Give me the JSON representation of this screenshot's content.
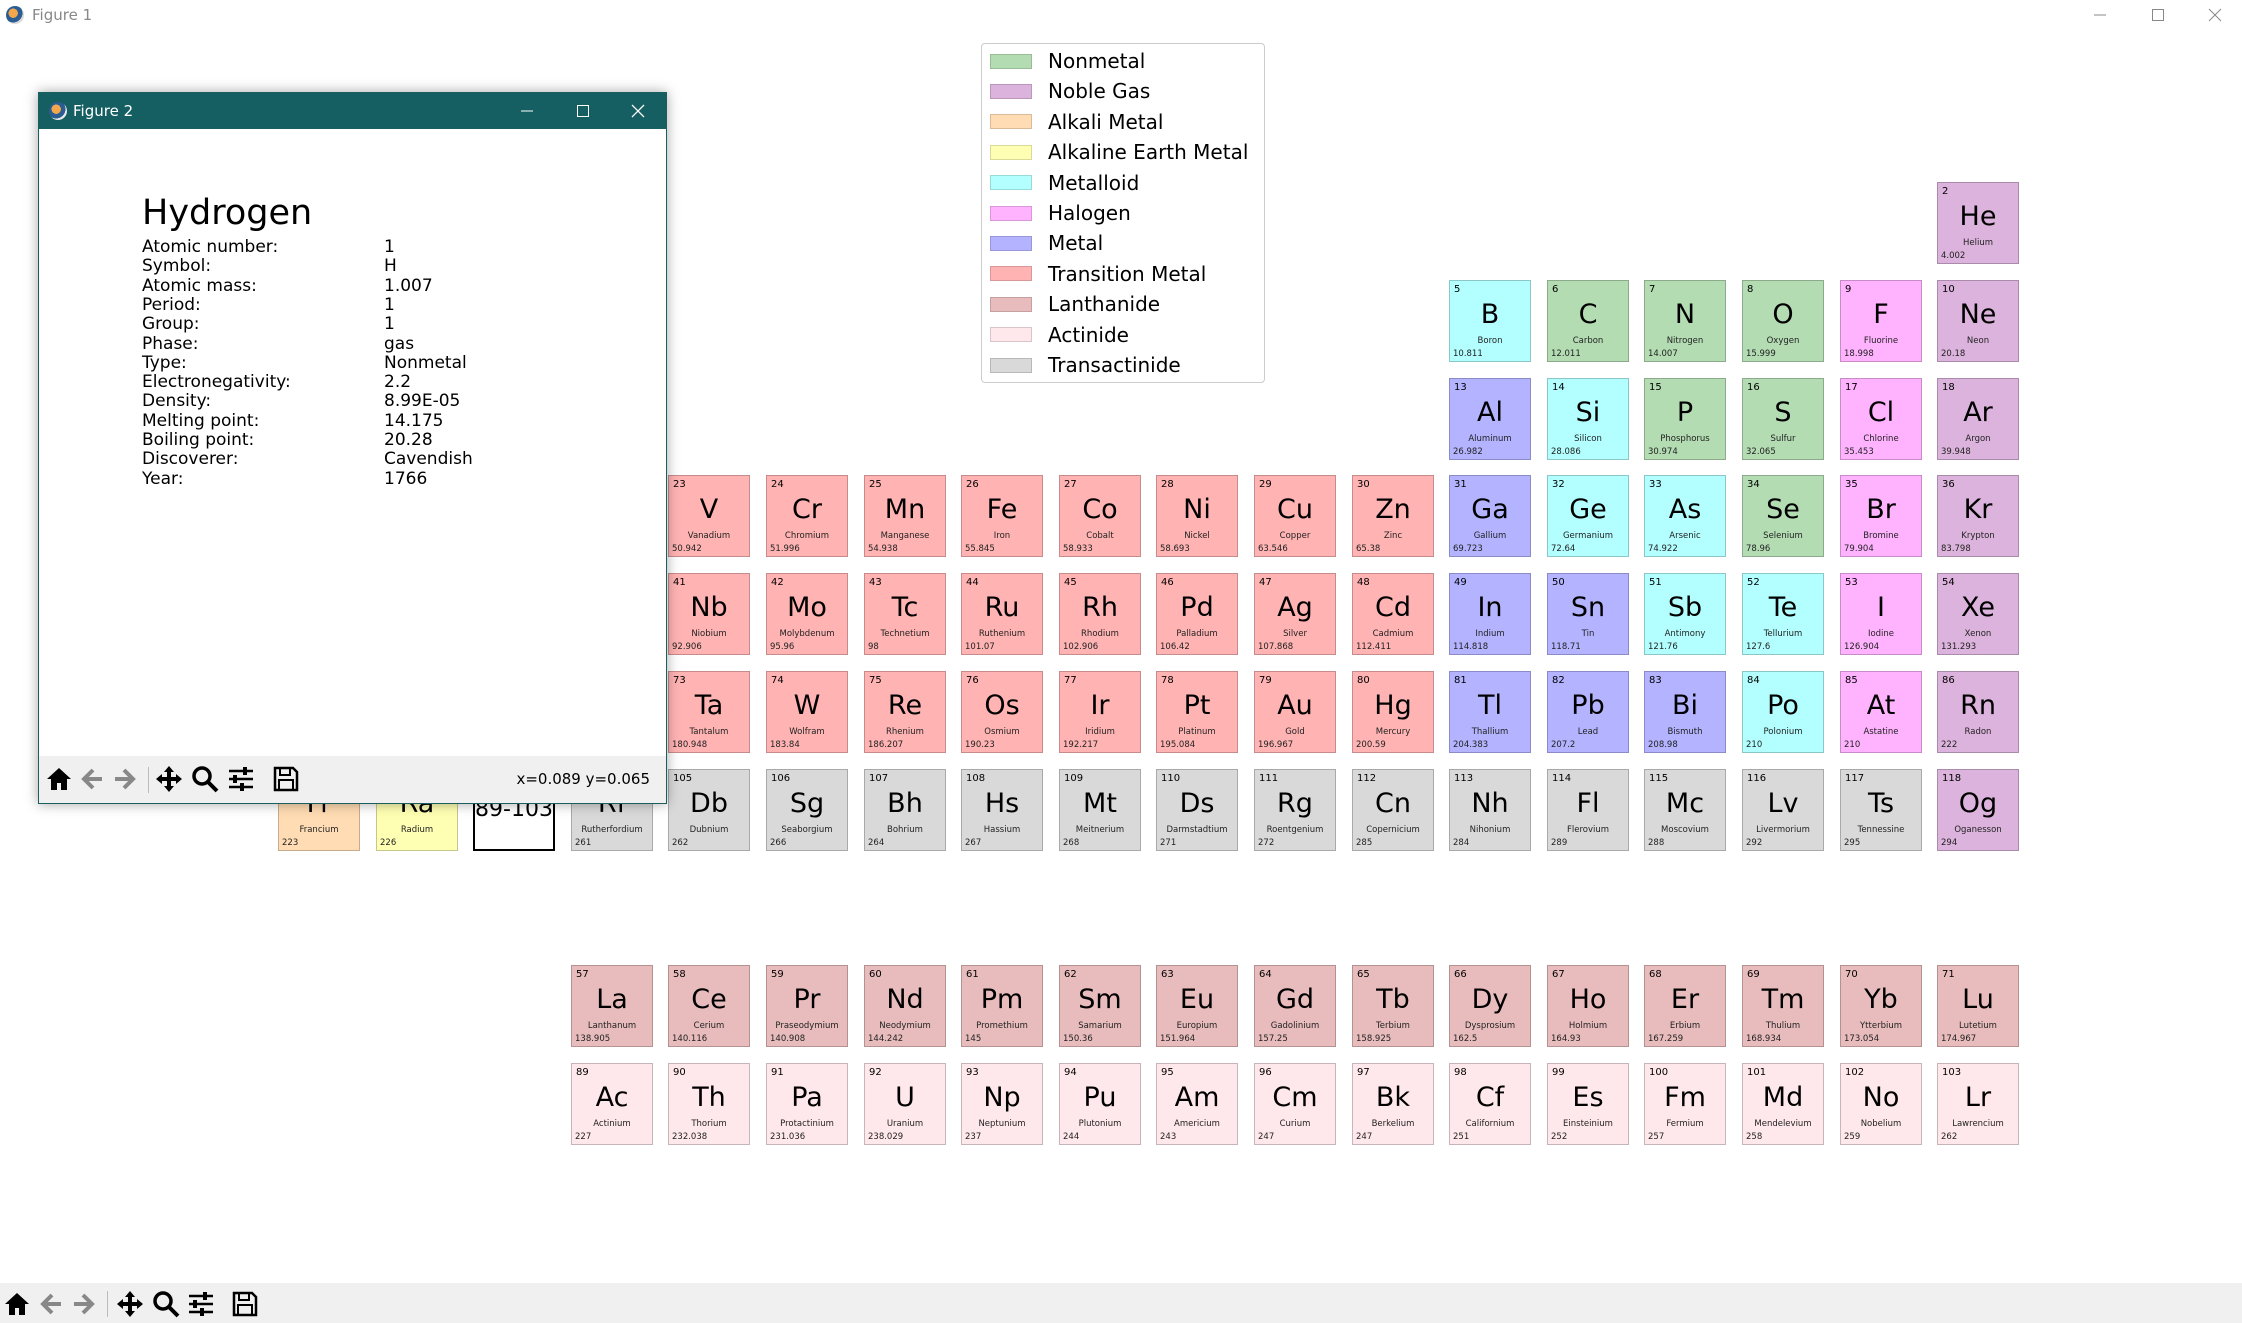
{
  "window": {
    "title": "Figure 1",
    "controls": [
      "minimize",
      "maximize",
      "close"
    ],
    "toolbar": [
      "home-icon",
      "back-arrow-icon",
      "forward-arrow-icon",
      "pan-icon",
      "zoom-icon",
      "configure-subplots-icon",
      "save-icon"
    ]
  },
  "colors": {
    "Nonmetal": "#b3dcb3",
    "Noble Gas": "#dcb3dc",
    "Alkali Metal": "#ffdcb3",
    "Alkaline Earth Metal": "#ffffb3",
    "Metalloid": "#b3ffff",
    "Halogen": "#ffb3ff",
    "Metal": "#b3b3ff",
    "Transition Metal": "#ffb3b3",
    "Lanthanide": "#e8bcbc",
    "Actinide": "#ffe8ec",
    "Transactinide": "#d9d9d9"
  },
  "legend": [
    "Nonmetal",
    "Noble Gas",
    "Alkali Metal",
    "Alkaline Earth Metal",
    "Metalloid",
    "Halogen",
    "Metal",
    "Transition Metal",
    "Lanthanide",
    "Actinide",
    "Transactinide"
  ],
  "placeholder": {
    "label": "89-103"
  },
  "elements": [
    {
      "n": "2",
      "s": "He",
      "name": "Helium",
      "mass": "4.002",
      "type": "Noble Gas",
      "col": 18,
      "row": 1
    },
    {
      "n": "5",
      "s": "B",
      "name": "Boron",
      "mass": "10.811",
      "type": "Metalloid",
      "col": 13,
      "row": 2
    },
    {
      "n": "6",
      "s": "C",
      "name": "Carbon",
      "mass": "12.011",
      "type": "Nonmetal",
      "col": 14,
      "row": 2
    },
    {
      "n": "7",
      "s": "N",
      "name": "Nitrogen",
      "mass": "14.007",
      "type": "Nonmetal",
      "col": 15,
      "row": 2
    },
    {
      "n": "8",
      "s": "O",
      "name": "Oxygen",
      "mass": "15.999",
      "type": "Nonmetal",
      "col": 16,
      "row": 2
    },
    {
      "n": "9",
      "s": "F",
      "name": "Fluorine",
      "mass": "18.998",
      "type": "Halogen",
      "col": 17,
      "row": 2
    },
    {
      "n": "10",
      "s": "Ne",
      "name": "Neon",
      "mass": "20.18",
      "type": "Noble Gas",
      "col": 18,
      "row": 2
    },
    {
      "n": "13",
      "s": "Al",
      "name": "Aluminum",
      "mass": "26.982",
      "type": "Metal",
      "col": 13,
      "row": 3
    },
    {
      "n": "14",
      "s": "Si",
      "name": "Silicon",
      "mass": "28.086",
      "type": "Metalloid",
      "col": 14,
      "row": 3
    },
    {
      "n": "15",
      "s": "P",
      "name": "Phosphorus",
      "mass": "30.974",
      "type": "Nonmetal",
      "col": 15,
      "row": 3
    },
    {
      "n": "16",
      "s": "S",
      "name": "Sulfur",
      "mass": "32.065",
      "type": "Nonmetal",
      "col": 16,
      "row": 3
    },
    {
      "n": "17",
      "s": "Cl",
      "name": "Chlorine",
      "mass": "35.453",
      "type": "Halogen",
      "col": 17,
      "row": 3
    },
    {
      "n": "18",
      "s": "Ar",
      "name": "Argon",
      "mass": "39.948",
      "type": "Noble Gas",
      "col": 18,
      "row": 3
    },
    {
      "n": "23",
      "s": "V",
      "name": "Vanadium",
      "mass": "50.942",
      "type": "Transition Metal",
      "col": 5,
      "row": 4
    },
    {
      "n": "24",
      "s": "Cr",
      "name": "Chromium",
      "mass": "51.996",
      "type": "Transition Metal",
      "col": 6,
      "row": 4
    },
    {
      "n": "25",
      "s": "Mn",
      "name": "Manganese",
      "mass": "54.938",
      "type": "Transition Metal",
      "col": 7,
      "row": 4
    },
    {
      "n": "26",
      "s": "Fe",
      "name": "Iron",
      "mass": "55.845",
      "type": "Transition Metal",
      "col": 8,
      "row": 4
    },
    {
      "n": "27",
      "s": "Co",
      "name": "Cobalt",
      "mass": "58.933",
      "type": "Transition Metal",
      "col": 9,
      "row": 4
    },
    {
      "n": "28",
      "s": "Ni",
      "name": "Nickel",
      "mass": "58.693",
      "type": "Transition Metal",
      "col": 10,
      "row": 4
    },
    {
      "n": "29",
      "s": "Cu",
      "name": "Copper",
      "mass": "63.546",
      "type": "Transition Metal",
      "col": 11,
      "row": 4
    },
    {
      "n": "30",
      "s": "Zn",
      "name": "Zinc",
      "mass": "65.38",
      "type": "Transition Metal",
      "col": 12,
      "row": 4
    },
    {
      "n": "31",
      "s": "Ga",
      "name": "Gallium",
      "mass": "69.723",
      "type": "Metal",
      "col": 13,
      "row": 4
    },
    {
      "n": "32",
      "s": "Ge",
      "name": "Germanium",
      "mass": "72.64",
      "type": "Metalloid",
      "col": 14,
      "row": 4
    },
    {
      "n": "33",
      "s": "As",
      "name": "Arsenic",
      "mass": "74.922",
      "type": "Metalloid",
      "col": 15,
      "row": 4
    },
    {
      "n": "34",
      "s": "Se",
      "name": "Selenium",
      "mass": "78.96",
      "type": "Nonmetal",
      "col": 16,
      "row": 4
    },
    {
      "n": "35",
      "s": "Br",
      "name": "Bromine",
      "mass": "79.904",
      "type": "Halogen",
      "col": 17,
      "row": 4
    },
    {
      "n": "36",
      "s": "Kr",
      "name": "Krypton",
      "mass": "83.798",
      "type": "Noble Gas",
      "col": 18,
      "row": 4
    },
    {
      "n": "41",
      "s": "Nb",
      "name": "Niobium",
      "mass": "92.906",
      "type": "Transition Metal",
      "col": 5,
      "row": 5
    },
    {
      "n": "42",
      "s": "Mo",
      "name": "Molybdenum",
      "mass": "95.96",
      "type": "Transition Metal",
      "col": 6,
      "row": 5
    },
    {
      "n": "43",
      "s": "Tc",
      "name": "Technetium",
      "mass": "98",
      "type": "Transition Metal",
      "col": 7,
      "row": 5
    },
    {
      "n": "44",
      "s": "Ru",
      "name": "Ruthenium",
      "mass": "101.07",
      "type": "Transition Metal",
      "col": 8,
      "row": 5
    },
    {
      "n": "45",
      "s": "Rh",
      "name": "Rhodium",
      "mass": "102.906",
      "type": "Transition Metal",
      "col": 9,
      "row": 5
    },
    {
      "n": "46",
      "s": "Pd",
      "name": "Palladium",
      "mass": "106.42",
      "type": "Transition Metal",
      "col": 10,
      "row": 5
    },
    {
      "n": "47",
      "s": "Ag",
      "name": "Silver",
      "mass": "107.868",
      "type": "Transition Metal",
      "col": 11,
      "row": 5
    },
    {
      "n": "48",
      "s": "Cd",
      "name": "Cadmium",
      "mass": "112.411",
      "type": "Transition Metal",
      "col": 12,
      "row": 5
    },
    {
      "n": "49",
      "s": "In",
      "name": "Indium",
      "mass": "114.818",
      "type": "Metal",
      "col": 13,
      "row": 5
    },
    {
      "n": "50",
      "s": "Sn",
      "name": "Tin",
      "mass": "118.71",
      "type": "Metal",
      "col": 14,
      "row": 5
    },
    {
      "n": "51",
      "s": "Sb",
      "name": "Antimony",
      "mass": "121.76",
      "type": "Metalloid",
      "col": 15,
      "row": 5
    },
    {
      "n": "52",
      "s": "Te",
      "name": "Tellurium",
      "mass": "127.6",
      "type": "Metalloid",
      "col": 16,
      "row": 5
    },
    {
      "n": "53",
      "s": "I",
      "name": "Iodine",
      "mass": "126.904",
      "type": "Halogen",
      "col": 17,
      "row": 5
    },
    {
      "n": "54",
      "s": "Xe",
      "name": "Xenon",
      "mass": "131.293",
      "type": "Noble Gas",
      "col": 18,
      "row": 5
    },
    {
      "n": "73",
      "s": "Ta",
      "name": "Tantalum",
      "mass": "180.948",
      "type": "Transition Metal",
      "col": 5,
      "row": 6
    },
    {
      "n": "74",
      "s": "W",
      "name": "Wolfram",
      "mass": "183.84",
      "type": "Transition Metal",
      "col": 6,
      "row": 6
    },
    {
      "n": "75",
      "s": "Re",
      "name": "Rhenium",
      "mass": "186.207",
      "type": "Transition Metal",
      "col": 7,
      "row": 6
    },
    {
      "n": "76",
      "s": "Os",
      "name": "Osmium",
      "mass": "190.23",
      "type": "Transition Metal",
      "col": 8,
      "row": 6
    },
    {
      "n": "77",
      "s": "Ir",
      "name": "Iridium",
      "mass": "192.217",
      "type": "Transition Metal",
      "col": 9,
      "row": 6
    },
    {
      "n": "78",
      "s": "Pt",
      "name": "Platinum",
      "mass": "195.084",
      "type": "Transition Metal",
      "col": 10,
      "row": 6
    },
    {
      "n": "79",
      "s": "Au",
      "name": "Gold",
      "mass": "196.967",
      "type": "Transition Metal",
      "col": 11,
      "row": 6
    },
    {
      "n": "80",
      "s": "Hg",
      "name": "Mercury",
      "mass": "200.59",
      "type": "Transition Metal",
      "col": 12,
      "row": 6
    },
    {
      "n": "81",
      "s": "Tl",
      "name": "Thallium",
      "mass": "204.383",
      "type": "Metal",
      "col": 13,
      "row": 6
    },
    {
      "n": "82",
      "s": "Pb",
      "name": "Lead",
      "mass": "207.2",
      "type": "Metal",
      "col": 14,
      "row": 6
    },
    {
      "n": "83",
      "s": "Bi",
      "name": "Bismuth",
      "mass": "208.98",
      "type": "Metal",
      "col": 15,
      "row": 6
    },
    {
      "n": "84",
      "s": "Po",
      "name": "Polonium",
      "mass": "210",
      "type": "Metalloid",
      "col": 16,
      "row": 6
    },
    {
      "n": "85",
      "s": "At",
      "name": "Astatine",
      "mass": "210",
      "type": "Halogen",
      "col": 17,
      "row": 6
    },
    {
      "n": "86",
      "s": "Rn",
      "name": "Radon",
      "mass": "222",
      "type": "Noble Gas",
      "col": 18,
      "row": 6
    },
    {
      "n": "",
      "s": "Fr",
      "name": "Francium",
      "mass": "223",
      "type": "Alkali Metal",
      "col": 1,
      "row": 7
    },
    {
      "n": "",
      "s": "Ra",
      "name": "Radium",
      "mass": "226",
      "type": "Alkaline Earth Metal",
      "col": 2,
      "row": 7
    },
    {
      "n": "",
      "s": "Rf",
      "name": "Rutherfordium",
      "mass": "261",
      "type": "Transactinide",
      "col": 4,
      "row": 7
    },
    {
      "n": "105",
      "s": "Db",
      "name": "Dubnium",
      "mass": "262",
      "type": "Transactinide",
      "col": 5,
      "row": 7
    },
    {
      "n": "106",
      "s": "Sg",
      "name": "Seaborgium",
      "mass": "266",
      "type": "Transactinide",
      "col": 6,
      "row": 7
    },
    {
      "n": "107",
      "s": "Bh",
      "name": "Bohrium",
      "mass": "264",
      "type": "Transactinide",
      "col": 7,
      "row": 7
    },
    {
      "n": "108",
      "s": "Hs",
      "name": "Hassium",
      "mass": "267",
      "type": "Transactinide",
      "col": 8,
      "row": 7
    },
    {
      "n": "109",
      "s": "Mt",
      "name": "Meitnerium",
      "mass": "268",
      "type": "Transactinide",
      "col": 9,
      "row": 7
    },
    {
      "n": "110",
      "s": "Ds",
      "name": "Darmstadtium",
      "mass": "271",
      "type": "Transactinide",
      "col": 10,
      "row": 7
    },
    {
      "n": "111",
      "s": "Rg",
      "name": "Roentgenium",
      "mass": "272",
      "type": "Transactinide",
      "col": 11,
      "row": 7
    },
    {
      "n": "112",
      "s": "Cn",
      "name": "Copernicium",
      "mass": "285",
      "type": "Transactinide",
      "col": 12,
      "row": 7
    },
    {
      "n": "113",
      "s": "Nh",
      "name": "Nihonium",
      "mass": "284",
      "type": "Transactinide",
      "col": 13,
      "row": 7
    },
    {
      "n": "114",
      "s": "Fl",
      "name": "Flerovium",
      "mass": "289",
      "type": "Transactinide",
      "col": 14,
      "row": 7
    },
    {
      "n": "115",
      "s": "Mc",
      "name": "Moscovium",
      "mass": "288",
      "type": "Transactinide",
      "col": 15,
      "row": 7
    },
    {
      "n": "116",
      "s": "Lv",
      "name": "Livermorium",
      "mass": "292",
      "type": "Transactinide",
      "col": 16,
      "row": 7
    },
    {
      "n": "117",
      "s": "Ts",
      "name": "Tennessine",
      "mass": "295",
      "type": "Transactinide",
      "col": 17,
      "row": 7
    },
    {
      "n": "118",
      "s": "Og",
      "name": "Oganesson",
      "mass": "294",
      "type": "Noble Gas",
      "col": 18,
      "row": 7
    },
    {
      "n": "57",
      "s": "La",
      "name": "Lanthanum",
      "mass": "138.905",
      "type": "Lanthanide",
      "col": 4,
      "row": 9
    },
    {
      "n": "58",
      "s": "Ce",
      "name": "Cerium",
      "mass": "140.116",
      "type": "Lanthanide",
      "col": 5,
      "row": 9
    },
    {
      "n": "59",
      "s": "Pr",
      "name": "Praseodymium",
      "mass": "140.908",
      "type": "Lanthanide",
      "col": 6,
      "row": 9
    },
    {
      "n": "60",
      "s": "Nd",
      "name": "Neodymium",
      "mass": "144.242",
      "type": "Lanthanide",
      "col": 7,
      "row": 9
    },
    {
      "n": "61",
      "s": "Pm",
      "name": "Promethium",
      "mass": "145",
      "type": "Lanthanide",
      "col": 8,
      "row": 9
    },
    {
      "n": "62",
      "s": "Sm",
      "name": "Samarium",
      "mass": "150.36",
      "type": "Lanthanide",
      "col": 9,
      "row": 9
    },
    {
      "n": "63",
      "s": "Eu",
      "name": "Europium",
      "mass": "151.964",
      "type": "Lanthanide",
      "col": 10,
      "row": 9
    },
    {
      "n": "64",
      "s": "Gd",
      "name": "Gadolinium",
      "mass": "157.25",
      "type": "Lanthanide",
      "col": 11,
      "row": 9
    },
    {
      "n": "65",
      "s": "Tb",
      "name": "Terbium",
      "mass": "158.925",
      "type": "Lanthanide",
      "col": 12,
      "row": 9
    },
    {
      "n": "66",
      "s": "Dy",
      "name": "Dysprosium",
      "mass": "162.5",
      "type": "Lanthanide",
      "col": 13,
      "row": 9
    },
    {
      "n": "67",
      "s": "Ho",
      "name": "Holmium",
      "mass": "164.93",
      "type": "Lanthanide",
      "col": 14,
      "row": 9
    },
    {
      "n": "68",
      "s": "Er",
      "name": "Erbium",
      "mass": "167.259",
      "type": "Lanthanide",
      "col": 15,
      "row": 9
    },
    {
      "n": "69",
      "s": "Tm",
      "name": "Thulium",
      "mass": "168.934",
      "type": "Lanthanide",
      "col": 16,
      "row": 9
    },
    {
      "n": "70",
      "s": "Yb",
      "name": "Ytterbium",
      "mass": "173.054",
      "type": "Lanthanide",
      "col": 17,
      "row": 9
    },
    {
      "n": "71",
      "s": "Lu",
      "name": "Lutetium",
      "mass": "174.967",
      "type": "Lanthanide",
      "col": 18,
      "row": 9
    },
    {
      "n": "89",
      "s": "Ac",
      "name": "Actinium",
      "mass": "227",
      "type": "Actinide",
      "col": 4,
      "row": 10
    },
    {
      "n": "90",
      "s": "Th",
      "name": "Thorium",
      "mass": "232.038",
      "type": "Actinide",
      "col": 5,
      "row": 10
    },
    {
      "n": "91",
      "s": "Pa",
      "name": "Protactinium",
      "mass": "231.036",
      "type": "Actinide",
      "col": 6,
      "row": 10
    },
    {
      "n": "92",
      "s": "U",
      "name": "Uranium",
      "mass": "238.029",
      "type": "Actinide",
      "col": 7,
      "row": 10
    },
    {
      "n": "93",
      "s": "Np",
      "name": "Neptunium",
      "mass": "237",
      "type": "Actinide",
      "col": 8,
      "row": 10
    },
    {
      "n": "94",
      "s": "Pu",
      "name": "Plutonium",
      "mass": "244",
      "type": "Actinide",
      "col": 9,
      "row": 10
    },
    {
      "n": "95",
      "s": "Am",
      "name": "Americium",
      "mass": "243",
      "type": "Actinide",
      "col": 10,
      "row": 10
    },
    {
      "n": "96",
      "s": "Cm",
      "name": "Curium",
      "mass": "247",
      "type": "Actinide",
      "col": 11,
      "row": 10
    },
    {
      "n": "97",
      "s": "Bk",
      "name": "Berkelium",
      "mass": "247",
      "type": "Actinide",
      "col": 12,
      "row": 10
    },
    {
      "n": "98",
      "s": "Cf",
      "name": "Californium",
      "mass": "251",
      "type": "Actinide",
      "col": 13,
      "row": 10
    },
    {
      "n": "99",
      "s": "Es",
      "name": "Einsteinium",
      "mass": "252",
      "type": "Actinide",
      "col": 14,
      "row": 10
    },
    {
      "n": "100",
      "s": "Fm",
      "name": "Fermium",
      "mass": "257",
      "type": "Actinide",
      "col": 15,
      "row": 10
    },
    {
      "n": "101",
      "s": "Md",
      "name": "Mendelevium",
      "mass": "258",
      "type": "Actinide",
      "col": 16,
      "row": 10
    },
    {
      "n": "102",
      "s": "No",
      "name": "Nobelium",
      "mass": "259",
      "type": "Actinide",
      "col": 17,
      "row": 10
    },
    {
      "n": "103",
      "s": "Lr",
      "name": "Lawrencium",
      "mass": "262",
      "type": "Actinide",
      "col": 18,
      "row": 10
    }
  ],
  "detail_window": {
    "title": "Figure 2",
    "heading": "Hydrogen",
    "rows": [
      {
        "label": "Atomic number:",
        "value": "1"
      },
      {
        "label": "Symbol:",
        "value": "H"
      },
      {
        "label": "Atomic mass:",
        "value": "1.007"
      },
      {
        "label": "Period:",
        "value": "1"
      },
      {
        "label": "Group:",
        "value": "1"
      },
      {
        "label": "Phase:",
        "value": "gas"
      },
      {
        "label": "Type:",
        "value": "Nonmetal"
      },
      {
        "label": "Electronegativity:",
        "value": "2.2"
      },
      {
        "label": "Density:",
        "value": "8.99E-05"
      },
      {
        "label": "Melting point:",
        "value": "14.175"
      },
      {
        "label": "Boiling point:",
        "value": "20.28"
      },
      {
        "label": "Discoverer:",
        "value": "Cavendish"
      },
      {
        "label": "Year:",
        "value": "1766"
      }
    ],
    "coords": "x=0.089 y=0.065"
  }
}
